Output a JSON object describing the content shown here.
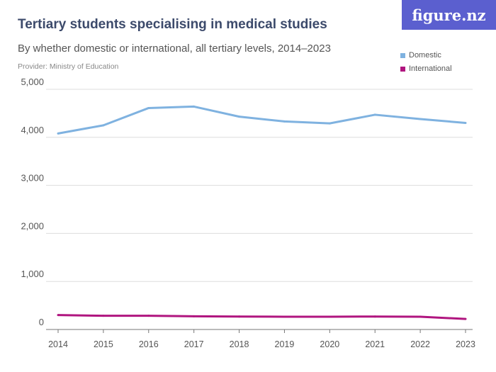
{
  "title": "Tertiary students specialising in medical studies",
  "subtitle": "By whether domestic or international, all tertiary levels, 2014–2023",
  "provider": "Provider: Ministry of Education",
  "logo": "figure.nz",
  "chart_data": {
    "type": "line",
    "x": [
      2014,
      2015,
      2016,
      2017,
      2018,
      2019,
      2020,
      2021,
      2022,
      2023
    ],
    "x_tick_labels": [
      "2014",
      "2015",
      "2016",
      "2017",
      "2018",
      "2019",
      "2020",
      "2021",
      "2022",
      "2023"
    ],
    "y_ticks": [
      0,
      1000,
      2000,
      3000,
      4000,
      5000
    ],
    "y_tick_labels": [
      "0",
      "1,000",
      "2,000",
      "3,000",
      "4,000",
      "5,000"
    ],
    "ylim": [
      0,
      5000
    ],
    "grid": true,
    "legend_position": "top-right",
    "series": [
      {
        "name": "Domestic",
        "color": "#7fb2e0",
        "values": [
          4080,
          4250,
          4610,
          4640,
          4430,
          4330,
          4290,
          4470,
          4380,
          4300
        ]
      },
      {
        "name": "International",
        "color": "#b0157f",
        "values": [
          300,
          285,
          285,
          275,
          270,
          265,
          265,
          270,
          265,
          220
        ]
      }
    ]
  }
}
